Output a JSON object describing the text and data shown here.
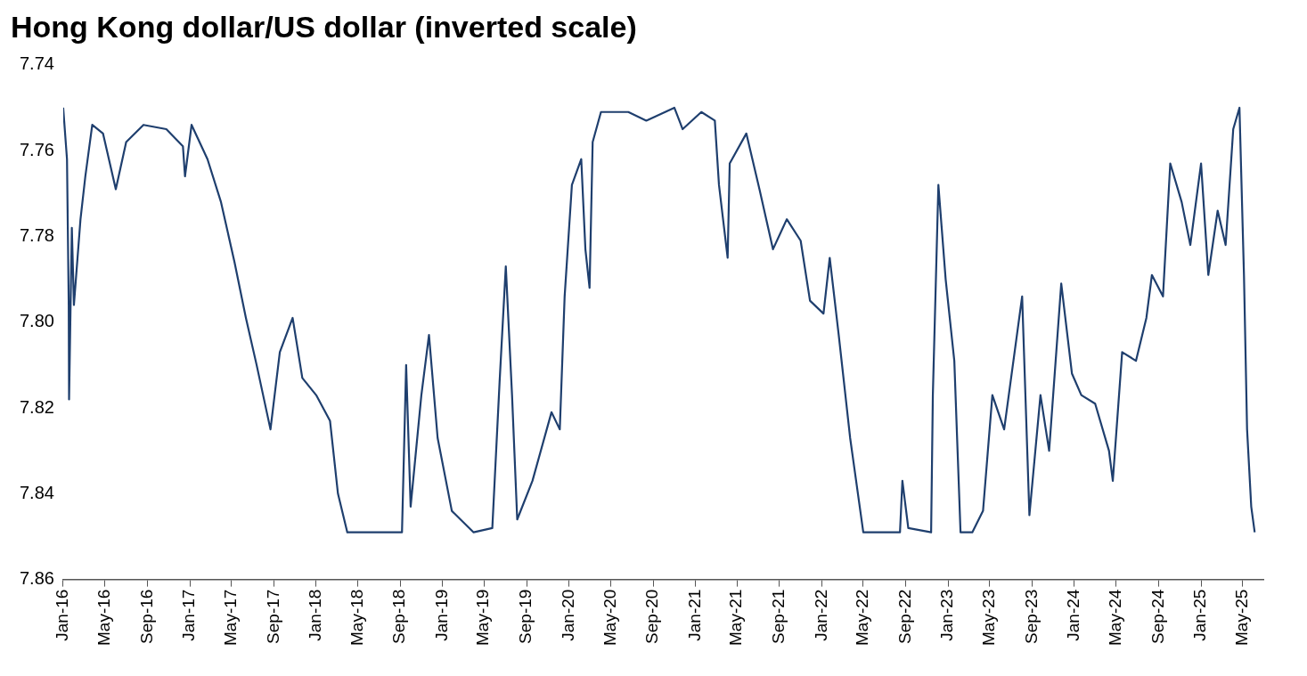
{
  "chart_data": {
    "type": "line",
    "title": "Hong Kong dollar/US dollar (inverted scale)",
    "x": [
      "2016-01-01",
      "2016-01-12",
      "2016-01-17",
      "2016-01-18",
      "2016-01-26",
      "2016-02-01",
      "2016-02-20",
      "2016-03-05",
      "2016-03-25",
      "2016-04-25",
      "2016-06-01",
      "2016-07-01",
      "2016-08-20",
      "2016-10-25",
      "2016-12-12",
      "2016-12-18",
      "2017-01-06",
      "2017-02-21",
      "2017-04-01",
      "2017-05-10",
      "2017-06-12",
      "2017-07-13",
      "2017-08-22",
      "2017-09-18",
      "2017-10-25",
      "2017-11-22",
      "2018-01-01",
      "2018-02-10",
      "2018-03-05",
      "2018-04-01",
      "2018-06-18",
      "2018-09-06",
      "2018-09-18",
      "2018-10-01",
      "2018-11-01",
      "2018-11-23",
      "2018-12-18",
      "2019-01-28",
      "2019-04-01",
      "2019-05-25",
      "2019-06-15",
      "2019-07-03",
      "2019-07-21",
      "2019-08-05",
      "2019-09-18",
      "2019-11-12",
      "2019-12-06",
      "2019-12-20",
      "2020-01-10",
      "2020-02-06",
      "2020-02-18",
      "2020-03-01",
      "2020-03-10",
      "2020-04-03",
      "2020-06-21",
      "2020-08-12",
      "2020-11-01",
      "2020-11-25",
      "2021-01-18",
      "2021-02-26",
      "2021-03-10",
      "2021-04-04",
      "2021-04-10",
      "2021-05-28",
      "2021-07-05",
      "2021-08-13",
      "2021-09-22",
      "2021-11-01",
      "2021-11-28",
      "2022-01-06",
      "2022-01-24",
      "2022-02-19",
      "2022-03-24",
      "2022-05-01",
      "2022-08-15",
      "2022-08-22",
      "2022-09-08",
      "2022-11-13",
      "2022-11-18",
      "2022-12-04",
      "2022-12-25",
      "2023-01-19",
      "2023-02-06",
      "2023-03-12",
      "2023-04-12",
      "2023-05-09",
      "2023-06-12",
      "2023-08-03",
      "2023-08-24",
      "2023-09-25",
      "2023-10-20",
      "2023-11-24",
      "2023-12-25",
      "2024-01-21",
      "2024-03-01",
      "2024-04-10",
      "2024-04-21",
      "2024-05-18",
      "2024-06-27",
      "2024-07-27",
      "2024-08-12",
      "2024-09-13",
      "2024-10-04",
      "2024-11-06",
      "2024-12-01",
      "2025-01-01",
      "2025-01-22",
      "2025-02-18",
      "2025-03-13",
      "2025-04-04",
      "2025-04-22",
      "2025-05-05",
      "2025-05-14",
      "2025-05-26",
      "2025-06-05"
    ],
    "series": [
      {
        "color": "#1f3f6e",
        "values": [
          7.75,
          7.762,
          7.796,
          7.818,
          7.778,
          7.796,
          7.776,
          7.766,
          7.754,
          7.756,
          7.769,
          7.758,
          7.754,
          7.755,
          7.759,
          7.766,
          7.754,
          7.762,
          7.772,
          7.786,
          7.799,
          7.81,
          7.825,
          7.807,
          7.799,
          7.813,
          7.817,
          7.823,
          7.84,
          7.849,
          7.849,
          7.849,
          7.81,
          7.843,
          7.817,
          7.803,
          7.827,
          7.844,
          7.849,
          7.848,
          7.814,
          7.787,
          7.817,
          7.846,
          7.837,
          7.821,
          7.825,
          7.794,
          7.768,
          7.762,
          7.783,
          7.792,
          7.758,
          7.751,
          7.751,
          7.753,
          7.75,
          7.755,
          7.751,
          7.753,
          7.768,
          7.785,
          7.763,
          7.756,
          7.769,
          7.783,
          7.776,
          7.781,
          7.795,
          7.798,
          7.785,
          7.803,
          7.827,
          7.849,
          7.849,
          7.837,
          7.848,
          7.849,
          7.817,
          7.768,
          7.79,
          7.809,
          7.849,
          7.849,
          7.844,
          7.817,
          7.825,
          7.794,
          7.845,
          7.817,
          7.83,
          7.791,
          7.812,
          7.817,
          7.819,
          7.83,
          7.837,
          7.807,
          7.809,
          7.799,
          7.789,
          7.794,
          7.763,
          7.772,
          7.782,
          7.763,
          7.789,
          7.774,
          7.782,
          7.755,
          7.75,
          7.789,
          7.825,
          7.843,
          7.849
        ]
      }
    ],
    "xlim": [
      "2016-01-01",
      "2025-06-30"
    ],
    "xticks": [
      {
        "value": "2016-01",
        "label": "Jan-16"
      },
      {
        "value": "2016-05",
        "label": "May-16"
      },
      {
        "value": "2016-09",
        "label": "Sep-16"
      },
      {
        "value": "2017-01",
        "label": "Jan-17"
      },
      {
        "value": "2017-05",
        "label": "May-17"
      },
      {
        "value": "2017-09",
        "label": "Sep-17"
      },
      {
        "value": "2018-01",
        "label": "Jan-18"
      },
      {
        "value": "2018-05",
        "label": "May-18"
      },
      {
        "value": "2018-09",
        "label": "Sep-18"
      },
      {
        "value": "2019-01",
        "label": "Jan-19"
      },
      {
        "value": "2019-05",
        "label": "May-19"
      },
      {
        "value": "2019-09",
        "label": "Sep-19"
      },
      {
        "value": "2020-01",
        "label": "Jan-20"
      },
      {
        "value": "2020-05",
        "label": "May-20"
      },
      {
        "value": "2020-09",
        "label": "Sep-20"
      },
      {
        "value": "2021-01",
        "label": "Jan-21"
      },
      {
        "value": "2021-05",
        "label": "May-21"
      },
      {
        "value": "2021-09",
        "label": "Sep-21"
      },
      {
        "value": "2022-01",
        "label": "Jan-22"
      },
      {
        "value": "2022-05",
        "label": "May-22"
      },
      {
        "value": "2022-09",
        "label": "Sep-22"
      },
      {
        "value": "2023-01",
        "label": "Jan-23"
      },
      {
        "value": "2023-05",
        "label": "May-23"
      },
      {
        "value": "2023-09",
        "label": "Sep-23"
      },
      {
        "value": "2024-01",
        "label": "Jan-24"
      },
      {
        "value": "2024-05",
        "label": "May-24"
      },
      {
        "value": "2024-09",
        "label": "Sep-24"
      },
      {
        "value": "2025-01",
        "label": "Jan-25"
      },
      {
        "value": "2025-05",
        "label": "May-25"
      }
    ],
    "ylim": [
      7.86,
      7.74
    ],
    "yticks": [
      {
        "value": 7.74,
        "label": "7.74"
      },
      {
        "value": 7.76,
        "label": "7.76"
      },
      {
        "value": 7.78,
        "label": "7.78"
      },
      {
        "value": 7.8,
        "label": "7.80"
      },
      {
        "value": 7.82,
        "label": "7.82"
      },
      {
        "value": 7.84,
        "label": "7.84"
      },
      {
        "value": 7.86,
        "label": "7.86"
      }
    ],
    "grid": false,
    "legend": false,
    "marker": "none",
    "line_style": "solid"
  }
}
